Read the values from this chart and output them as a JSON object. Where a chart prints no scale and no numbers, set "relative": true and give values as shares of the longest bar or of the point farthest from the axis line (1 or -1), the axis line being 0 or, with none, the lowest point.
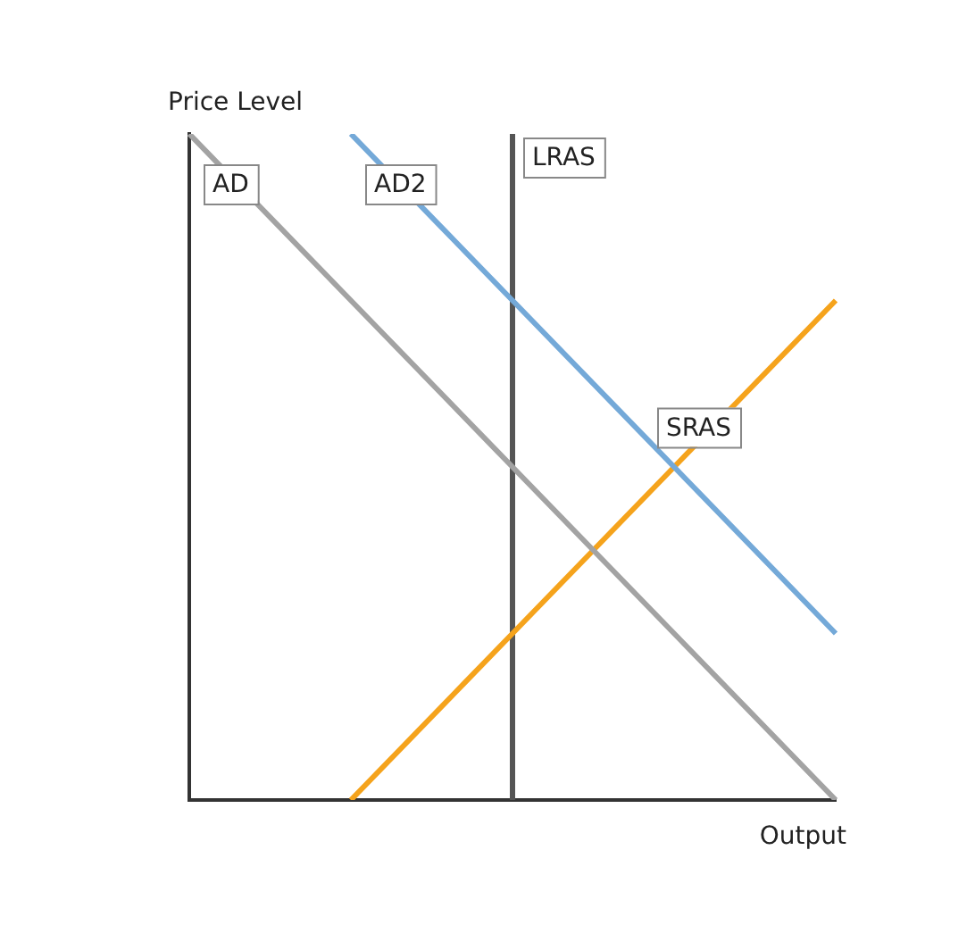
{
  "chart_data": {
    "type": "line",
    "relative": true,
    "xlabel": "Output",
    "ylabel": "Price Level",
    "grid": false,
    "legend": false,
    "marker": "none",
    "line_style": "solid",
    "categories": [
      null,
      null,
      null,
      null,
      null
    ],
    "series": [
      {
        "name": "AD",
        "color": "#a3a3a3",
        "values": [
          1,
          0.75,
          0.5,
          0.25,
          0
        ]
      },
      {
        "name": "AD2",
        "color": "#74a9d8",
        "values": [
          null,
          1,
          0.75,
          0.5,
          0.25
        ]
      },
      {
        "name": "SRAS",
        "color": "#f5a31c",
        "values": [
          null,
          0,
          0.25,
          0.5,
          0.75
        ]
      }
    ],
    "annotations": [
      "LRAS"
    ]
  }
}
